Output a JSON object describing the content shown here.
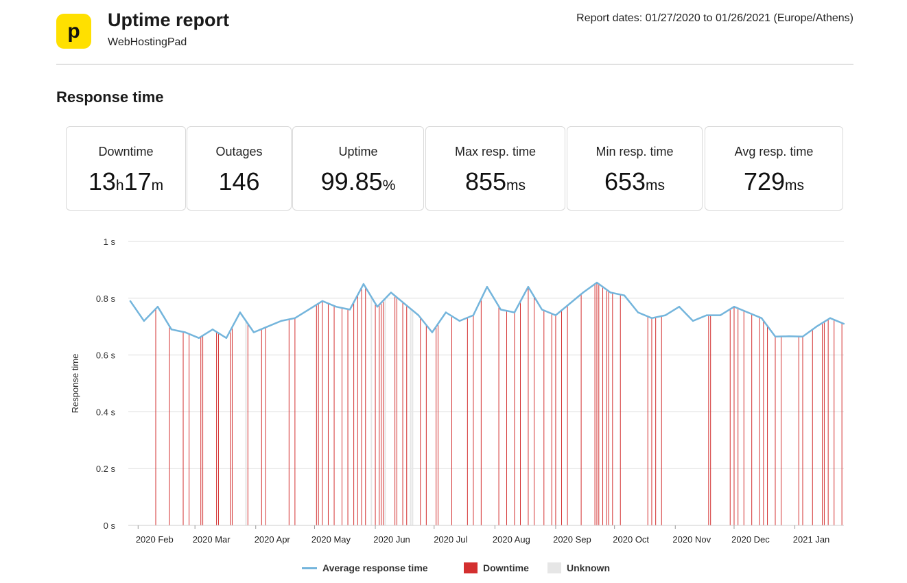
{
  "header": {
    "logo_letter": "p",
    "title": "Uptime report",
    "subtitle": "WebHostingPad",
    "report_dates": "Report dates: 01/27/2020 to 01/26/2021 (Europe/Athens)"
  },
  "section_title": "Response time",
  "stats": [
    {
      "label": "Downtime",
      "parts": [
        {
          "t": "13",
          "u": false
        },
        {
          "t": "h",
          "u": true
        },
        {
          "t": "17",
          "u": false
        },
        {
          "t": "m",
          "u": true
        }
      ]
    },
    {
      "label": "Outages",
      "parts": [
        {
          "t": "146",
          "u": false
        }
      ]
    },
    {
      "label": "Uptime",
      "parts": [
        {
          "t": "99.85",
          "u": false
        },
        {
          "t": "%",
          "u": true
        }
      ]
    },
    {
      "label": "Max resp. time",
      "parts": [
        {
          "t": "855",
          "u": false
        },
        {
          "t": "ms",
          "u": true
        }
      ]
    },
    {
      "label": "Min resp. time",
      "parts": [
        {
          "t": "653",
          "u": false
        },
        {
          "t": "ms",
          "u": true
        }
      ]
    },
    {
      "label": "Avg resp. time",
      "parts": [
        {
          "t": "729",
          "u": false
        },
        {
          "t": "ms",
          "u": true
        }
      ]
    }
  ],
  "colors": {
    "line": "#74b5dc",
    "downtime": "#d32f2f",
    "unknown": "#e6e6e6",
    "grid": "#dddddd",
    "logo": "#ffe000"
  },
  "chart_data": {
    "type": "line",
    "title": "",
    "xlabel": "",
    "ylabel": "Response time",
    "ylim": [
      0,
      1
    ],
    "yticks": [
      0,
      0.2,
      0.4,
      0.6,
      0.8,
      1
    ],
    "ytick_labels": [
      "0 s",
      "0.2 s",
      "0.4 s",
      "0.6 s",
      "0.8 s",
      "1 s"
    ],
    "xlim": [
      "2020-01-27",
      "2021-01-26"
    ],
    "xticks": [
      "2020-02-01",
      "2020-03-01",
      "2020-04-01",
      "2020-05-01",
      "2020-06-01",
      "2020-07-01",
      "2020-08-01",
      "2020-09-01",
      "2020-10-01",
      "2020-11-01",
      "2020-12-01",
      "2021-01-01"
    ],
    "xtick_labels": [
      "2020 Feb",
      "2020 Mar",
      "2020 Apr",
      "2020 May",
      "2020 Jun",
      "2020 Jul",
      "2020 Aug",
      "2020 Sep",
      "2020 Oct",
      "2020 Nov",
      "2020 Dec",
      "2021 Jan"
    ],
    "legend_position": "bottom",
    "grid": true,
    "series": [
      {
        "name": "Average response time",
        "x": [
          "2020-01-28",
          "2020-02-04",
          "2020-02-11",
          "2020-02-18",
          "2020-02-25",
          "2020-03-03",
          "2020-03-10",
          "2020-03-17",
          "2020-03-24",
          "2020-03-31",
          "2020-04-07",
          "2020-04-14",
          "2020-04-21",
          "2020-04-28",
          "2020-05-05",
          "2020-05-12",
          "2020-05-19",
          "2020-05-26",
          "2020-06-02",
          "2020-06-09",
          "2020-06-16",
          "2020-06-23",
          "2020-06-30",
          "2020-07-07",
          "2020-07-14",
          "2020-07-21",
          "2020-07-28",
          "2020-08-04",
          "2020-08-11",
          "2020-08-18",
          "2020-08-25",
          "2020-09-01",
          "2020-09-08",
          "2020-09-15",
          "2020-09-22",
          "2020-09-29",
          "2020-10-06",
          "2020-10-13",
          "2020-10-20",
          "2020-10-27",
          "2020-11-03",
          "2020-11-10",
          "2020-11-17",
          "2020-11-24",
          "2020-12-01",
          "2020-12-08",
          "2020-12-15",
          "2020-12-22",
          "2020-12-29",
          "2021-01-05",
          "2021-01-12",
          "2021-01-19",
          "2021-01-26"
        ],
        "values": [
          0.79,
          0.72,
          0.77,
          0.69,
          0.68,
          0.66,
          0.69,
          0.66,
          0.75,
          0.68,
          0.7,
          0.72,
          0.73,
          0.76,
          0.79,
          0.77,
          0.76,
          0.85,
          0.77,
          0.82,
          0.78,
          0.74,
          0.68,
          0.75,
          0.72,
          0.74,
          0.84,
          0.76,
          0.75,
          0.84,
          0.76,
          0.74,
          0.78,
          0.82,
          0.855,
          0.82,
          0.81,
          0.75,
          0.73,
          0.74,
          0.77,
          0.72,
          0.74,
          0.74,
          0.77,
          0.75,
          0.73,
          0.665,
          0.666,
          0.665,
          0.7,
          0.73,
          0.71
        ]
      }
    ],
    "downtime_events": [
      "2020-02-10",
      "2020-02-17",
      "2020-02-24",
      "2020-02-27",
      "2020-03-04",
      "2020-03-05",
      "2020-03-12",
      "2020-03-13",
      "2020-03-19",
      "2020-03-20",
      "2020-03-28",
      "2020-04-04",
      "2020-04-06",
      "2020-04-18",
      "2020-04-21",
      "2020-05-02",
      "2020-05-03",
      "2020-05-05",
      "2020-05-08",
      "2020-05-11",
      "2020-05-15",
      "2020-05-18",
      "2020-05-21",
      "2020-05-23",
      "2020-05-25",
      "2020-05-27",
      "2020-06-01",
      "2020-06-03",
      "2020-06-04",
      "2020-06-05",
      "2020-06-11",
      "2020-06-12",
      "2020-06-15",
      "2020-06-17",
      "2020-06-24",
      "2020-06-27",
      "2020-07-02",
      "2020-07-03",
      "2020-07-10",
      "2020-07-18",
      "2020-07-21",
      "2020-07-25",
      "2020-08-03",
      "2020-08-07",
      "2020-08-11",
      "2020-08-14",
      "2020-08-18",
      "2020-08-21",
      "2020-08-26",
      "2020-08-30",
      "2020-09-01",
      "2020-09-04",
      "2020-09-07",
      "2020-09-14",
      "2020-09-21",
      "2020-09-22",
      "2020-09-23",
      "2020-09-25",
      "2020-09-27",
      "2020-09-28",
      "2020-09-30",
      "2020-10-04",
      "2020-10-18",
      "2020-10-20",
      "2020-10-22",
      "2020-10-25",
      "2020-11-18",
      "2020-11-19",
      "2020-11-29",
      "2020-12-01",
      "2020-12-03",
      "2020-12-06",
      "2020-12-10",
      "2020-12-14",
      "2020-12-16",
      "2020-12-18",
      "2020-12-22",
      "2020-12-25",
      "2021-01-03",
      "2021-01-05",
      "2021-01-10",
      "2021-01-15",
      "2021-01-16",
      "2021-01-18",
      "2021-01-21",
      "2021-01-25"
    ],
    "unknown_events": [
      "2020-03-27",
      "2020-05-30",
      "2020-06-06",
      "2020-06-19",
      "2020-06-20"
    ],
    "legend": [
      {
        "label": "Average response time",
        "kind": "line"
      },
      {
        "label": "Downtime",
        "kind": "box"
      },
      {
        "label": "Unknown",
        "kind": "box"
      }
    ]
  }
}
